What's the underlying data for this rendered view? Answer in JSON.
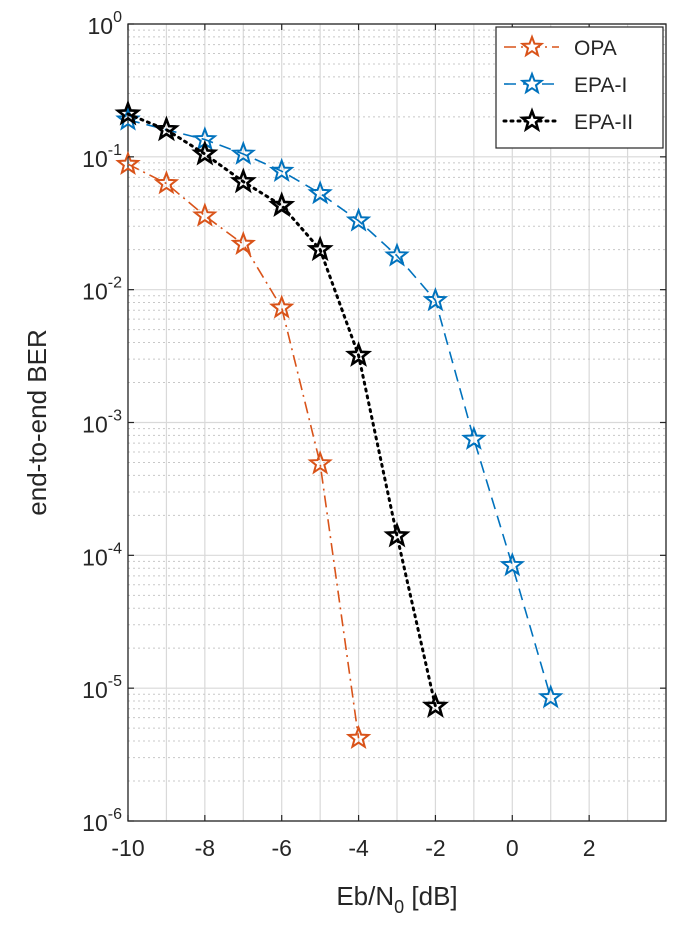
{
  "chart_data": {
    "type": "line",
    "title": "",
    "xlabel": "Eb/N0 [dB]",
    "xlabel_main": "Eb/N",
    "xlabel_sub": "0",
    "xlabel_tail": " [dB]",
    "ylabel": "end-to-end BER",
    "xlim": [
      -10,
      4
    ],
    "ylim": [
      1e-06,
      1
    ],
    "yscale": "log",
    "grid": true,
    "minor_grid": true,
    "legend_position": "top-right",
    "x_ticks": [
      -10,
      -8,
      -6,
      -4,
      -2,
      0,
      2
    ],
    "x_tick_labels": [
      "-10",
      "-8",
      "-6",
      "-4",
      "-2",
      "0",
      "2"
    ],
    "y_ticks": [
      {
        "value": 1,
        "base": "10",
        "exp": "0"
      },
      {
        "value": 0.1,
        "base": "10",
        "exp": "-1"
      },
      {
        "value": 0.01,
        "base": "10",
        "exp": "-2"
      },
      {
        "value": 0.001,
        "base": "10",
        "exp": "-3"
      },
      {
        "value": 0.0001,
        "base": "10",
        "exp": "-4"
      },
      {
        "value": 1e-05,
        "base": "10",
        "exp": "-5"
      },
      {
        "value": 1e-06,
        "base": "10",
        "exp": "-6"
      }
    ],
    "series": [
      {
        "name": "OPA",
        "color": "#D95319",
        "line_style": "dash-dot",
        "marker": "star",
        "x": [
          -10,
          -9,
          -8,
          -7,
          -6,
          -5,
          -4
        ],
        "y": [
          0.088,
          0.063,
          0.036,
          0.022,
          0.0073,
          0.00049,
          4.2e-06
        ]
      },
      {
        "name": "EPA-I",
        "color": "#0072BD",
        "line_style": "dashed",
        "marker": "star",
        "x": [
          -10,
          -9,
          -8,
          -7,
          -6,
          -5,
          -4,
          -3,
          -2,
          -1,
          0,
          1
        ],
        "y": [
          0.19,
          0.16,
          0.135,
          0.105,
          0.078,
          0.053,
          0.033,
          0.018,
          0.0083,
          0.00075,
          8.4e-05,
          8.5e-06
        ]
      },
      {
        "name": "EPA-II",
        "color": "#000000",
        "line_style": "dotted",
        "marker": "star",
        "x": [
          -10,
          -9,
          -8,
          -7,
          -6,
          -5,
          -4,
          -3,
          -2
        ],
        "y": [
          0.21,
          0.16,
          0.105,
          0.065,
          0.043,
          0.02,
          0.0032,
          0.00014,
          7.3e-06
        ]
      }
    ]
  }
}
